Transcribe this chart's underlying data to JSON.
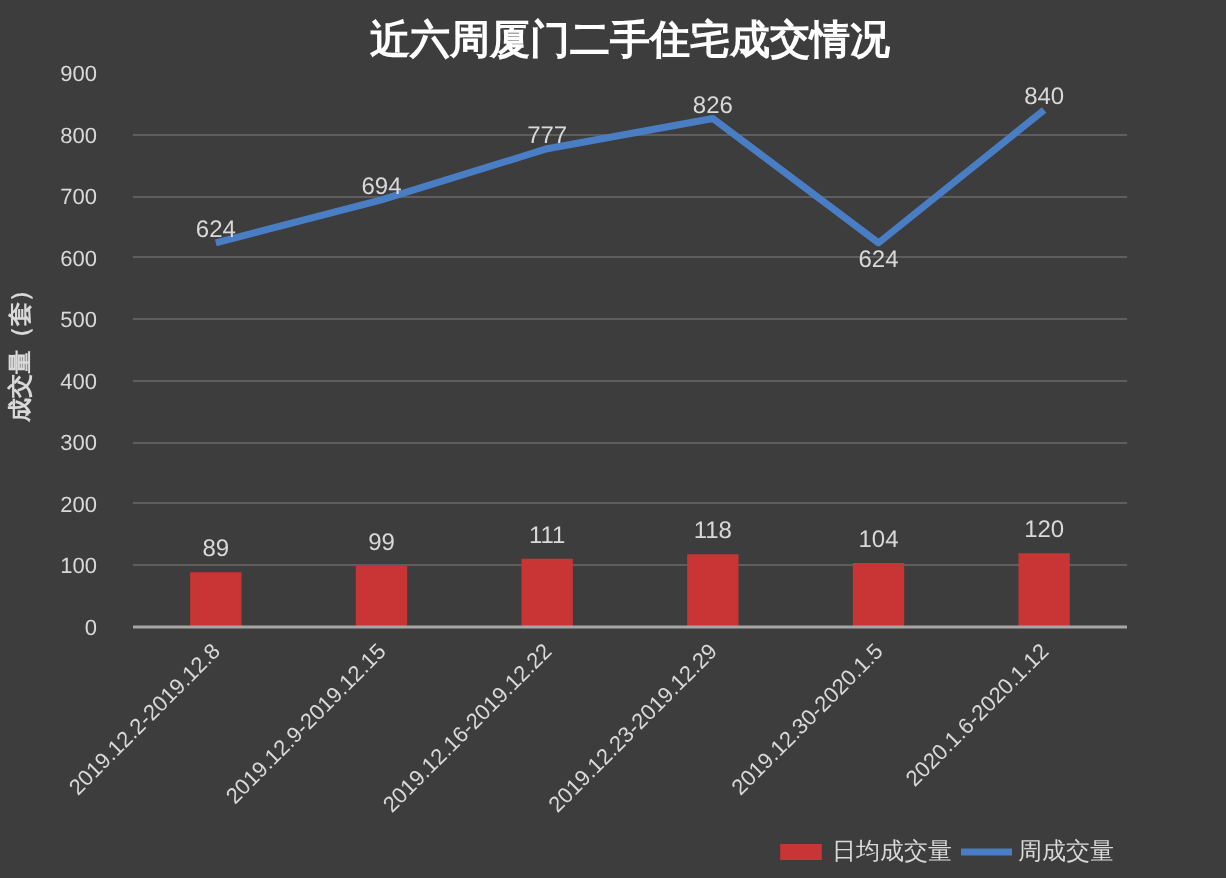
{
  "chart_data": {
    "type": "bar",
    "title": "近六周厦门二手住宅成交情况",
    "ylabel": "成交量（套）",
    "categories": [
      "2019.12.2-2019.12.8",
      "2019.12.9-2019.12.15",
      "2019.12.16-2019.12.22",
      "2019.12.23-2019.12.29",
      "2019.12.30-2020.1.5",
      "2020.1.6-2020.1.12"
    ],
    "series": [
      {
        "name": "日均成交量",
        "color": "#c93535",
        "values": [
          89,
          99,
          111,
          118,
          104,
          120
        ]
      },
      {
        "name": "周成交量",
        "type": "line",
        "color": "#4a7ec4",
        "values": [
          624,
          694,
          777,
          826,
          624,
          840
        ]
      }
    ],
    "ylim": [
      0,
      900
    ],
    "yticks": [
      0,
      100,
      200,
      300,
      400,
      500,
      600,
      700,
      800,
      900
    ],
    "grid": "y",
    "legend": "bottom right",
    "data_labels": true
  }
}
